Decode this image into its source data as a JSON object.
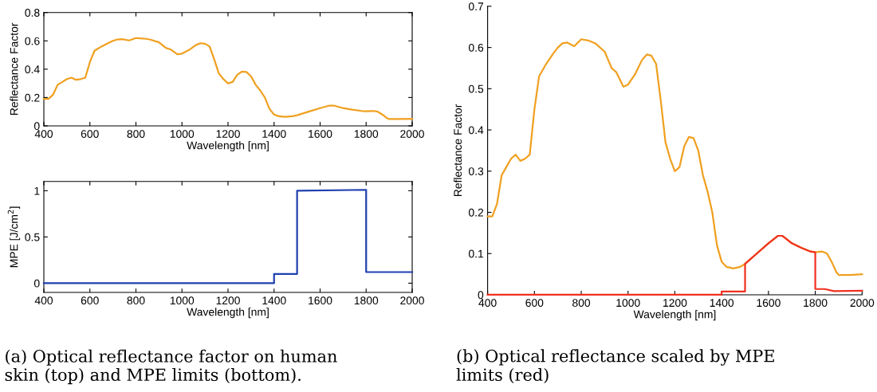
{
  "chart_data": [
    {
      "type": "line",
      "xlabel": "Wavelength [nm]",
      "ylabel": "Reflectance Factor",
      "xlim": [
        400,
        2000
      ],
      "xticks": [
        400,
        600,
        800,
        1000,
        1200,
        1400,
        1600,
        1800,
        2000
      ],
      "ylim": [
        0,
        0.8
      ],
      "yticks": [
        0,
        0.2,
        0.4,
        0.6,
        0.8
      ],
      "grid": false,
      "legend": false,
      "series": [
        {
          "color": "#f0a020",
          "x": [
            400,
            420,
            440,
            460,
            480,
            500,
            520,
            540,
            560,
            580,
            600,
            620,
            650,
            680,
            700,
            720,
            740,
            770,
            800,
            830,
            860,
            900,
            930,
            950,
            980,
            1000,
            1030,
            1060,
            1080,
            1100,
            1120,
            1140,
            1160,
            1180,
            1200,
            1220,
            1240,
            1260,
            1280,
            1300,
            1320,
            1340,
            1360,
            1380,
            1400,
            1420,
            1450,
            1480,
            1500,
            1550,
            1600,
            1640,
            1660,
            1700,
            1740,
            1780,
            1800,
            1830,
            1850,
            1870,
            1890,
            1900,
            1950,
            2000
          ],
          "values": [
            0.19,
            0.19,
            0.22,
            0.29,
            0.31,
            0.33,
            0.34,
            0.325,
            0.33,
            0.34,
            0.45,
            0.53,
            0.56,
            0.585,
            0.6,
            0.61,
            0.612,
            0.603,
            0.62,
            0.617,
            0.61,
            0.59,
            0.55,
            0.54,
            0.505,
            0.51,
            0.535,
            0.57,
            0.583,
            0.58,
            0.56,
            0.47,
            0.37,
            0.33,
            0.3,
            0.31,
            0.36,
            0.383,
            0.38,
            0.35,
            0.29,
            0.25,
            0.2,
            0.12,
            0.08,
            0.068,
            0.064,
            0.068,
            0.075,
            0.1,
            0.125,
            0.143,
            0.143,
            0.125,
            0.114,
            0.105,
            0.103,
            0.105,
            0.1,
            0.08,
            0.055,
            0.048,
            0.048,
            0.05
          ]
        }
      ]
    },
    {
      "type": "line",
      "xlabel": "Wavelength [nm]",
      "ylabel": "MPE [J/cm$^{2}$]",
      "xlim": [
        400,
        2000
      ],
      "xticks": [
        400,
        600,
        800,
        1000,
        1200,
        1400,
        1600,
        1800,
        2000
      ],
      "ylim": [
        -0.1,
        1.1
      ],
      "yticks": [
        0,
        0.5,
        1
      ],
      "grid": false,
      "legend": false,
      "annotations": [
        "(a) Optical reflectance factor on human\nskin (top) and MPE limits (bottom)."
      ],
      "series": [
        {
          "color": "#2040b0",
          "x": [
            400,
            1400,
            1400,
            1500,
            1500,
            1800,
            1800,
            2000
          ],
          "values": [
            0,
            0,
            0.1,
            0.1,
            1.0,
            1.01,
            0.12,
            0.12
          ]
        }
      ]
    },
    {
      "type": "line",
      "xlabel": "Wavelength [nm]",
      "ylabel": "Reflectance Factor",
      "xlim": [
        400,
        2000
      ],
      "xticks": [
        400,
        600,
        800,
        1000,
        1200,
        1400,
        1600,
        1800,
        2000
      ],
      "ylim": [
        0,
        0.7
      ],
      "yticks": [
        0,
        0.1,
        0.2,
        0.3,
        0.4,
        0.5,
        0.6,
        0.7
      ],
      "grid": false,
      "legend": false,
      "annotations": [
        "(b) Optical reflectance scaled by MPE\nlimits (red)"
      ],
      "series": [
        {
          "color": "#f0a020",
          "x": [
            400,
            420,
            440,
            460,
            480,
            500,
            520,
            540,
            560,
            580,
            600,
            620,
            650,
            680,
            700,
            720,
            740,
            770,
            800,
            830,
            860,
            900,
            930,
            950,
            980,
            1000,
            1030,
            1060,
            1080,
            1100,
            1120,
            1140,
            1160,
            1180,
            1200,
            1220,
            1240,
            1260,
            1280,
            1300,
            1320,
            1340,
            1360,
            1380,
            1400,
            1420,
            1450,
            1480,
            1500,
            1550,
            1600,
            1640,
            1660,
            1700,
            1740,
            1780,
            1800,
            1830,
            1850,
            1870,
            1890,
            1900,
            1950,
            2000
          ],
          "values": [
            0.19,
            0.19,
            0.22,
            0.29,
            0.31,
            0.33,
            0.34,
            0.325,
            0.33,
            0.34,
            0.45,
            0.53,
            0.56,
            0.585,
            0.6,
            0.61,
            0.612,
            0.603,
            0.62,
            0.617,
            0.61,
            0.59,
            0.55,
            0.54,
            0.505,
            0.51,
            0.535,
            0.57,
            0.583,
            0.58,
            0.56,
            0.47,
            0.37,
            0.33,
            0.3,
            0.31,
            0.36,
            0.383,
            0.38,
            0.35,
            0.29,
            0.25,
            0.2,
            0.12,
            0.08,
            0.068,
            0.064,
            0.068,
            0.075,
            0.1,
            0.125,
            0.143,
            0.143,
            0.125,
            0.114,
            0.105,
            0.103,
            0.105,
            0.1,
            0.08,
            0.055,
            0.048,
            0.048,
            0.05
          ]
        },
        {
          "color": "#f03020",
          "x": [
            400,
            1400,
            1400,
            1500,
            1500,
            1550,
            1600,
            1640,
            1660,
            1700,
            1740,
            1780,
            1800,
            1800,
            1840,
            1880,
            2000
          ],
          "values": [
            0,
            0,
            0.008,
            0.008,
            0.075,
            0.1,
            0.125,
            0.143,
            0.143,
            0.125,
            0.114,
            0.105,
            0.103,
            0.014,
            0.014,
            0.009,
            0.01
          ]
        }
      ]
    }
  ]
}
